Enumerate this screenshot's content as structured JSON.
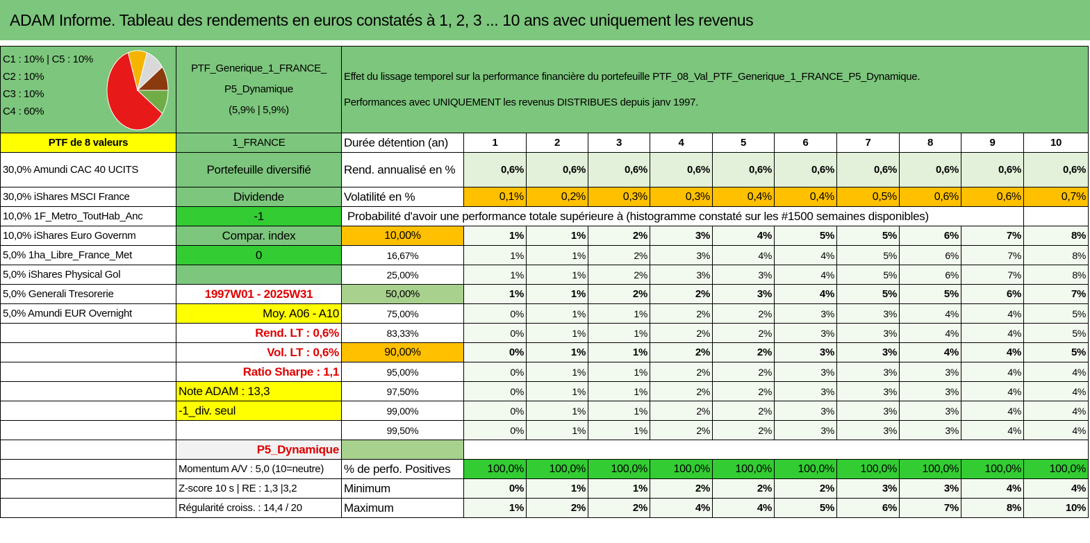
{
  "title": "ADAM Informe. Tableau des rendements en euros constatés à 1, 2, 3 ... 10 ans avec uniquement les revenus",
  "composition": {
    "lines": [
      "C1 : 10% | C5 : 10%",
      "C2 : 10%",
      "C3 : 10%",
      "C4 : 60%"
    ],
    "pie": [
      {
        "label": "C4",
        "value": 60,
        "color": "#e81919"
      },
      {
        "label": "C1",
        "value": 10,
        "color": "#f5b400"
      },
      {
        "label": "C5",
        "value": 10,
        "color": "#d9d9d9"
      },
      {
        "label": "C2",
        "value": 10,
        "color": "#8b3a0e"
      },
      {
        "label": "C3",
        "value": 10,
        "color": "#70ad47"
      }
    ]
  },
  "portfolio": {
    "name_line1": "PTF_Generique_1_FRANCE_",
    "name_line2": "P5_Dynamique",
    "name_line3": "(5,9% | 5,9%)",
    "effect_line1": "Effet du lissage temporel sur la performance financière du portefeuille PTF_08_Val_PTF_Generique_1_FRANCE_P5_Dynamique.",
    "effect_line2": "Performances avec UNIQUEMENT les revenus DISTRIBUES depuis janv 1997."
  },
  "holdings_header": "PTF de 8 valeurs",
  "holdings": [
    "30,0% Amundi CAC 40 UCITS",
    "30,0% iShares MSCI France",
    "10,0% 1F_Metro_ToutHab_Anc",
    "10,0% iShares Euro Governm",
    "5,0% 1ha_Libre_France_Met",
    "5,0% iShares Physical Gol",
    "5,0% Generali Tresorerie",
    "5,0% Amundi EUR Overnight"
  ],
  "info": {
    "region": "1_FRANCE",
    "type": "Portefeuille diversifié",
    "dividend_label": "Dividende",
    "dividend_value": "-1",
    "compar_label": "Compar. index",
    "compar_value": "0",
    "period": "1997W01 - 2025W31",
    "moy": "Moy. A06 - A10",
    "rend_lt": "Rend. LT : 0,6%",
    "vol_lt": "Vol. LT : 0,6%",
    "sharpe": "Ratio Sharpe : 1,1",
    "note": "Note ADAM : 13,3",
    "div_seul": "-1_div. seul",
    "profile": "P5_Dynamique",
    "momentum": "Momentum A/V : 5,0 (10=neutre)",
    "zscore": "Z-score 10 s | RE : 1,3 |3,2",
    "regularite": "Régularité croiss. : 14,4 / 20"
  },
  "table": {
    "duration_label": "Durée détention (an)",
    "years": [
      "1",
      "2",
      "3",
      "4",
      "5",
      "6",
      "7",
      "8",
      "9",
      "10"
    ],
    "rend_label": "Rend. annualisé en %",
    "rend": [
      "0,6%",
      "0,6%",
      "0,6%",
      "0,6%",
      "0,6%",
      "0,6%",
      "0,6%",
      "0,6%",
      "0,6%",
      "0,6%"
    ],
    "vol_label": "Volatilité en %",
    "vol": [
      "0,1%",
      "0,2%",
      "0,3%",
      "0,3%",
      "0,4%",
      "0,4%",
      "0,5%",
      "0,6%",
      "0,6%",
      "0,7%"
    ],
    "prob_label": "Probabilité d'avoir une performance totale supérieure à (histogramme constaté sur les #1500 semaines disponibles)",
    "quantiles": [
      {
        "q": "10,00%",
        "v": [
          "1%",
          "1%",
          "2%",
          "3%",
          "4%",
          "5%",
          "5%",
          "6%",
          "7%",
          "8%"
        ]
      },
      {
        "q": "16,67%",
        "v": [
          "1%",
          "1%",
          "2%",
          "3%",
          "4%",
          "4%",
          "5%",
          "6%",
          "7%",
          "8%"
        ]
      },
      {
        "q": "25,00%",
        "v": [
          "1%",
          "1%",
          "2%",
          "3%",
          "3%",
          "4%",
          "5%",
          "6%",
          "7%",
          "8%"
        ]
      },
      {
        "q": "50,00%",
        "v": [
          "1%",
          "1%",
          "2%",
          "2%",
          "3%",
          "4%",
          "5%",
          "5%",
          "6%",
          "7%"
        ]
      },
      {
        "q": "75,00%",
        "v": [
          "0%",
          "1%",
          "1%",
          "2%",
          "2%",
          "3%",
          "3%",
          "4%",
          "4%",
          "5%"
        ]
      },
      {
        "q": "83,33%",
        "v": [
          "0%",
          "1%",
          "1%",
          "2%",
          "2%",
          "3%",
          "3%",
          "4%",
          "4%",
          "5%"
        ]
      },
      {
        "q": "90,00%",
        "v": [
          "0%",
          "1%",
          "1%",
          "2%",
          "2%",
          "3%",
          "3%",
          "4%",
          "4%",
          "5%"
        ]
      },
      {
        "q": "95,00%",
        "v": [
          "0%",
          "1%",
          "1%",
          "2%",
          "2%",
          "3%",
          "3%",
          "3%",
          "4%",
          "4%"
        ]
      },
      {
        "q": "97,50%",
        "v": [
          "0%",
          "1%",
          "1%",
          "2%",
          "2%",
          "3%",
          "3%",
          "3%",
          "4%",
          "4%"
        ]
      },
      {
        "q": "99,00%",
        "v": [
          "0%",
          "1%",
          "1%",
          "2%",
          "2%",
          "3%",
          "3%",
          "3%",
          "4%",
          "4%"
        ]
      },
      {
        "q": "99,50%",
        "v": [
          "0%",
          "1%",
          "1%",
          "2%",
          "2%",
          "3%",
          "3%",
          "3%",
          "4%",
          "4%"
        ]
      }
    ],
    "pos_label": "% de perfo. Positives",
    "pos": [
      "100,0%",
      "100,0%",
      "100,0%",
      "100,0%",
      "100,0%",
      "100,0%",
      "100,0%",
      "100,0%",
      "100,0%",
      "100,0%"
    ],
    "min_label": "Minimum",
    "min": [
      "0%",
      "1%",
      "1%",
      "2%",
      "2%",
      "2%",
      "3%",
      "3%",
      "4%",
      "4%"
    ],
    "max_label": "Maximum",
    "max": [
      "1%",
      "2%",
      "2%",
      "4%",
      "4%",
      "5%",
      "6%",
      "7%",
      "8%",
      "10%"
    ]
  }
}
